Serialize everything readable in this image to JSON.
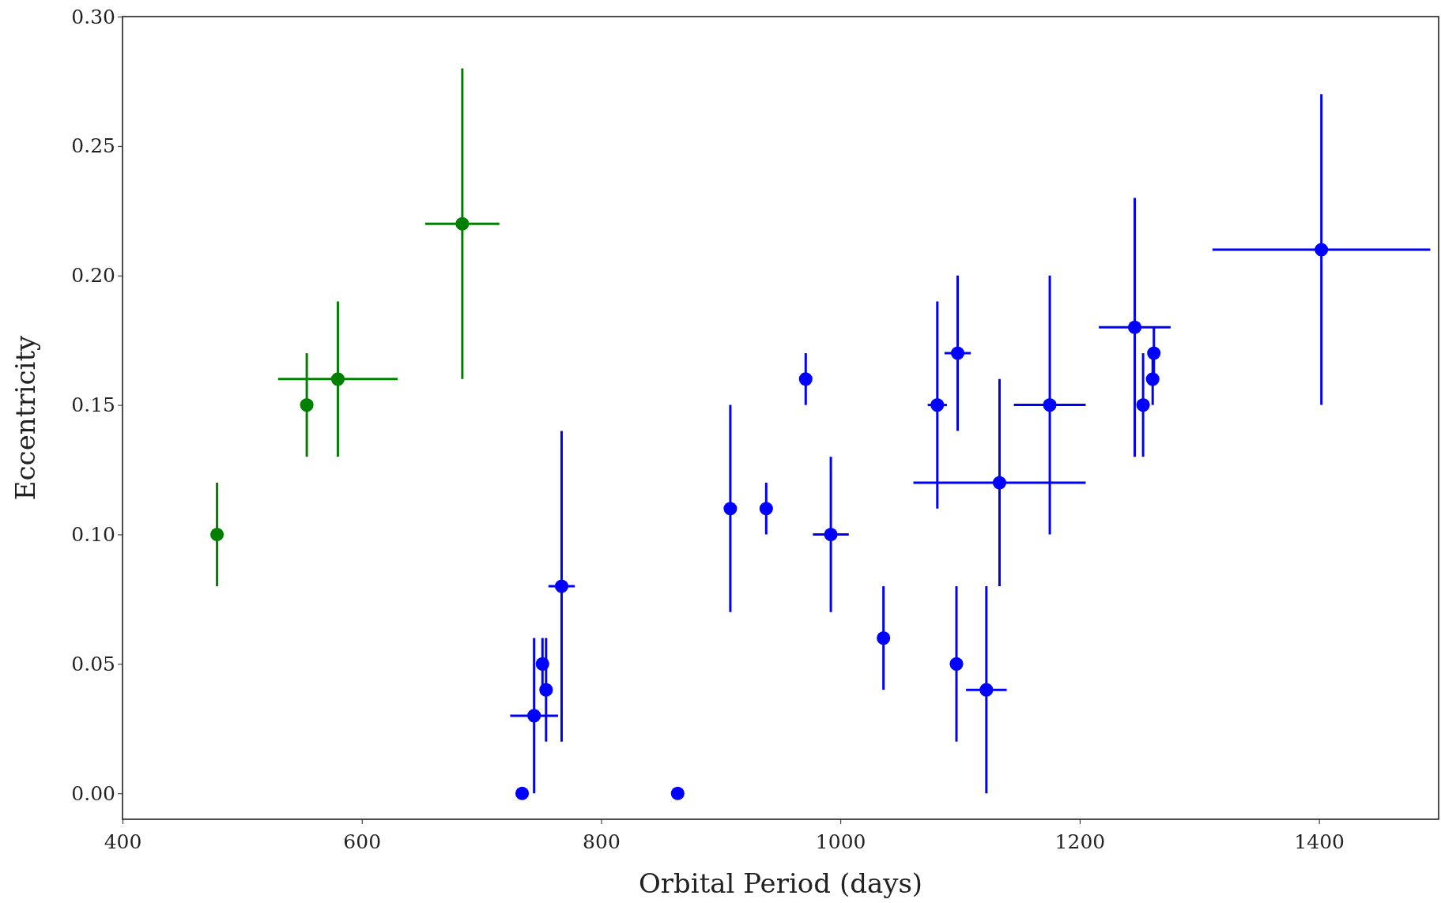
{
  "chart_data": {
    "type": "scatter",
    "xlabel": "Orbital Period (days)",
    "ylabel": "Eccentricity",
    "xlim": [
      400,
      1500
    ],
    "ylim": [
      -0.01,
      0.3
    ],
    "xticks": [
      400,
      600,
      800,
      1000,
      1200,
      1400
    ],
    "yticks": [
      {
        "value": 0,
        "label": "0.00"
      },
      {
        "value": 0.05,
        "label": "0.05"
      },
      {
        "value": 0.1,
        "label": "0.10"
      },
      {
        "value": 0.15,
        "label": "0.15"
      },
      {
        "value": 0.2,
        "label": "0.20"
      },
      {
        "value": 0.25,
        "label": "0.25"
      },
      {
        "value": 0.3,
        "label": "0.30"
      }
    ],
    "grid": false,
    "marker": "circle",
    "series": [
      {
        "color": "#008000",
        "x": [
          479,
          554,
          580,
          684
        ],
        "values": [
          0.1,
          0.15,
          0.16,
          0.22
        ],
        "errors": [
          0.02,
          0.02,
          0.03,
          0.06
        ],
        "xerrors": [
          null,
          null,
          50,
          31
        ]
      },
      {
        "color": "#0000ff",
        "x": [
          734,
          744,
          751,
          754,
          767,
          864,
          908,
          938,
          971,
          992,
          1036,
          1081,
          1098,
          1097,
          1122,
          1133,
          1175,
          1246,
          1253,
          1261,
          1262,
          1402
        ],
        "values": [
          0,
          0.03,
          0.05,
          0.04,
          0.08,
          0,
          0.11,
          0.11,
          0.16,
          0.1,
          0.06,
          0.15,
          0.17,
          0.05,
          0.04,
          0.12,
          0.15,
          0.18,
          0.15,
          0.16,
          0.17,
          0.21
        ],
        "errors": [
          null,
          0.03,
          0.01,
          0.02,
          0.06,
          null,
          0.04,
          0.01,
          0.01,
          0.03,
          0.02,
          0.04,
          0.03,
          0.03,
          0.04,
          0.04,
          0.05,
          0.05,
          0.02,
          0.01,
          0.01,
          0.06
        ],
        "xerrors": [
          null,
          20,
          null,
          null,
          11,
          null,
          null,
          null,
          null,
          15,
          null,
          8,
          11,
          null,
          17,
          72,
          30,
          30,
          null,
          null,
          null,
          91
        ]
      }
    ]
  }
}
